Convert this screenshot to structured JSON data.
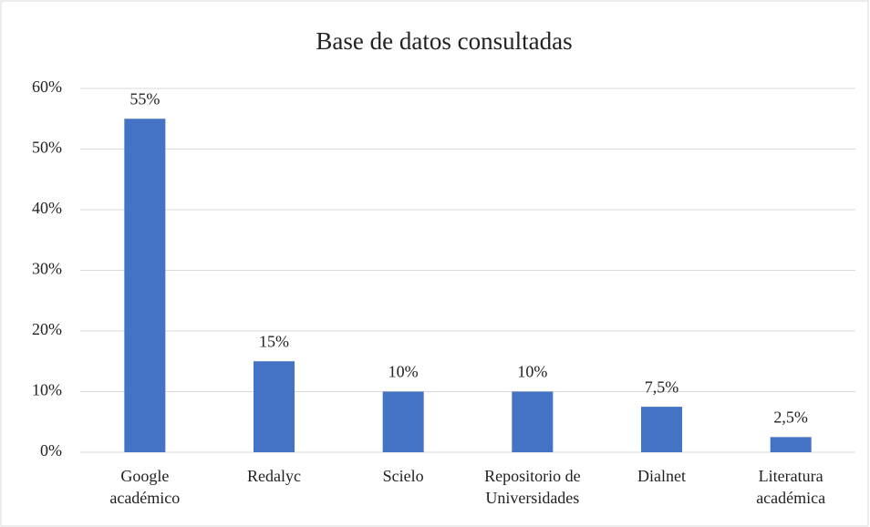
{
  "chart_data": {
    "type": "bar",
    "title": "Base de datos consultadas",
    "categories": [
      "Google\nacadémico",
      "Redalyc",
      "Scielo",
      "Repositorio de\nUniversidades",
      "Dialnet",
      "Literatura\nacadémica"
    ],
    "values": [
      55,
      15,
      10,
      10,
      7.5,
      2.5
    ],
    "value_labels": [
      "55%",
      "15%",
      "10%",
      "10%",
      "7,5%",
      "2,5%"
    ],
    "color": "#4472c4",
    "ylim": [
      0,
      60
    ],
    "yticks": [
      {
        "value": 0,
        "label": "0%"
      },
      {
        "value": 10,
        "label": "10%"
      },
      {
        "value": 20,
        "label": "20%"
      },
      {
        "value": 30,
        "label": "30%"
      },
      {
        "value": 40,
        "label": "40%"
      },
      {
        "value": 50,
        "label": "50%"
      },
      {
        "value": 60,
        "label": "60%"
      }
    ],
    "grid": true
  }
}
